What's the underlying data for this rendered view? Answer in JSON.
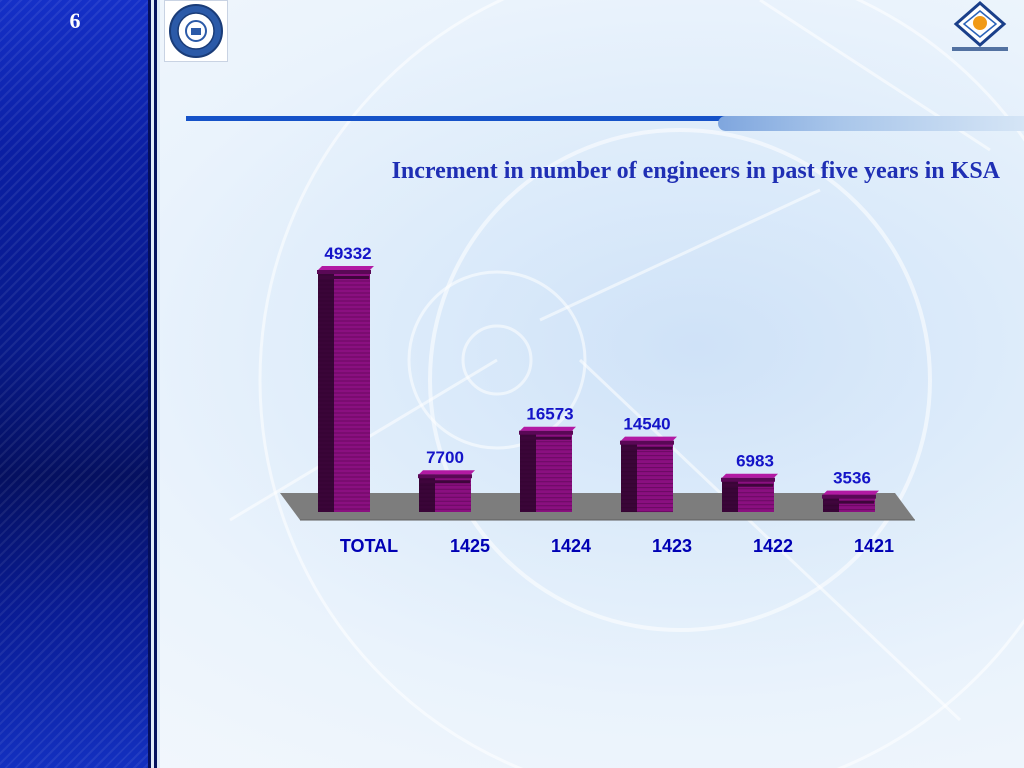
{
  "slide": {
    "number": "6"
  },
  "title": "Increment in number of engineers in past five years in KSA",
  "colors": {
    "bar_front": "#8a0f80",
    "bar_side": "#3a0538",
    "bar_top": "#b21aa3",
    "floor": "#7d7d7d",
    "label": "#1414c8",
    "accent": "#1552c8"
  },
  "logos": {
    "left_icon": "university-seal-icon",
    "right_icon": "saudi-council-engineers-icon"
  },
  "chart_data": {
    "type": "bar",
    "categories": [
      "TOTAL",
      "1425",
      "1424",
      "1423",
      "1422",
      "1421"
    ],
    "values": [
      49332,
      7700,
      16573,
      14540,
      6983,
      3536
    ],
    "title": "Increment in number of engineers in past five years in KSA",
    "xlabel": "",
    "ylabel": "",
    "ylim": [
      0,
      50000
    ],
    "grid": false,
    "legend": "none"
  }
}
